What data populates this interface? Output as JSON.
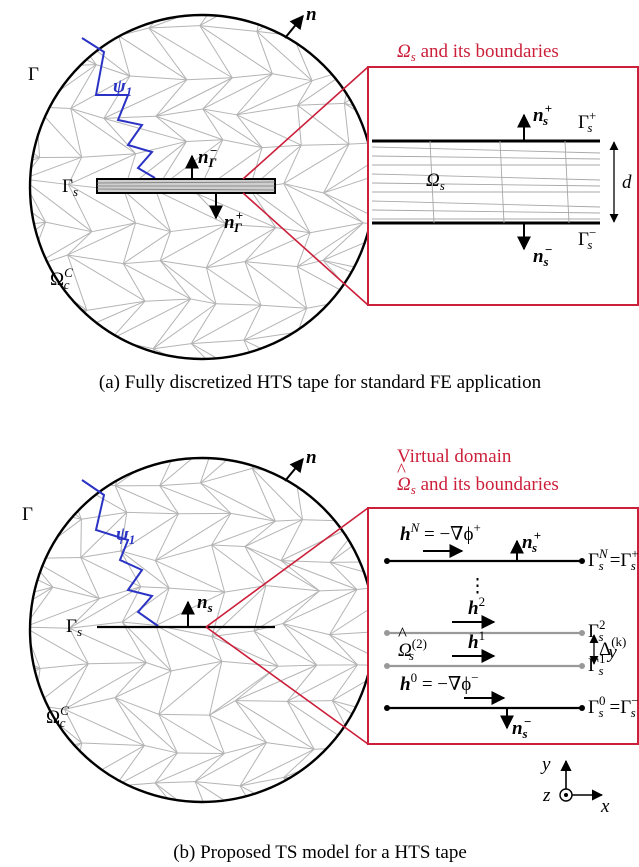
{
  "panel_a": {
    "label_gamma": "Γ",
    "label_n": "n",
    "label_psi": "ψ",
    "label_psi_sub": "1",
    "label_gamma_s": "Γ",
    "label_gamma_s_sub": "s",
    "label_n_gamma_minus": "n",
    "label_n_gamma_minus_sup": "−",
    "label_n_gamma_minus_sub": "Γ",
    "label_n_gamma_plus": "n",
    "label_n_gamma_plus_sup": "+",
    "label_n_gamma_plus_sub": "Γ",
    "label_omega_c": "Ω",
    "label_omega_c_sup": "C",
    "label_omega_c_sub": "c",
    "zoom_title": "Ω",
    "zoom_title_sub": "s",
    "zoom_title_rest": " and its boundaries",
    "zoom_omega_s": "Ω",
    "zoom_omega_s_sub": "s",
    "zoom_n_plus": "n",
    "zoom_n_plus_sup": "+",
    "zoom_n_plus_sub": "s",
    "zoom_n_minus": "n",
    "zoom_n_minus_sup": "−",
    "zoom_n_minus_sub": "s",
    "zoom_gamma_plus": "Γ",
    "zoom_gamma_plus_sup": "+",
    "zoom_gamma_plus_sub": "s",
    "zoom_gamma_minus": "Γ",
    "zoom_gamma_minus_sup": "−",
    "zoom_gamma_minus_sub": "s",
    "zoom_d": "d",
    "caption": "(a) Fully discretized HTS tape for standard FE application"
  },
  "panel_b": {
    "label_gamma": "Γ",
    "label_n": "n",
    "label_psi": "ψ",
    "label_psi_sub": "1",
    "label_gamma_s": "Γ",
    "label_gamma_s_sub": "s",
    "label_n_s": "n",
    "label_n_s_sub": "s",
    "label_omega_c": "Ω",
    "label_omega_c_sup": "C",
    "label_omega_c_sub": "c",
    "zoom_title_line1": "Virtual domain",
    "zoom_title_line2_sym": "Ω",
    "zoom_title_line2_sub": "s",
    "zoom_title_line2_rest": " and its boundaries",
    "eq_top_h": "h",
    "eq_top_sup": "N",
    "eq_top_rest": " = −∇ϕ",
    "eq_top_rest_sup": "+",
    "eq_bottom_h": "h",
    "eq_bottom_sup": "0",
    "eq_bottom_rest": " = −∇ϕ",
    "eq_bottom_rest_sup": "−",
    "dots": "⋮",
    "h2": "h",
    "h2_sup": "2",
    "h1": "h",
    "h1_sup": "1",
    "omega_hat_2": "Ω",
    "omega_hat_2_sup": "(2)",
    "omega_hat_2_sub": "s",
    "gamma_top": "Γ",
    "gamma_top_sup": "N",
    "gamma_top_sub": "s",
    "gamma_top_eq": "=Γ",
    "gamma_top_eq_sup": "+",
    "gamma_top_eq_sub": "s",
    "gamma_2": "Γ",
    "gamma_2_sup": "2",
    "gamma_2_sub": "s",
    "gamma_1": "Γ",
    "gamma_1_sup": "1",
    "gamma_1_sub": "s",
    "gamma_0": "Γ",
    "gamma_0_sup": "0",
    "gamma_0_sub": "s",
    "gamma_0_eq": "=Γ",
    "gamma_0_eq_sup": "−",
    "gamma_0_eq_sub": "s",
    "delta": "Δ",
    "delta_sup": "(k)",
    "delta_sub": "y",
    "n_plus": "n",
    "n_plus_sup": "+",
    "n_plus_sub": "s",
    "n_minus": "n",
    "n_minus_sup": "−",
    "n_minus_sub": "s",
    "axis_y": "y",
    "axis_z": "z",
    "axis_x": "x",
    "caption": "(b) Proposed TS model for a HTS tape"
  },
  "colors": {
    "accent_red": "#cc1f3a",
    "curve_blue": "#2a33c4",
    "mesh_gray": "#b4b4b4"
  }
}
